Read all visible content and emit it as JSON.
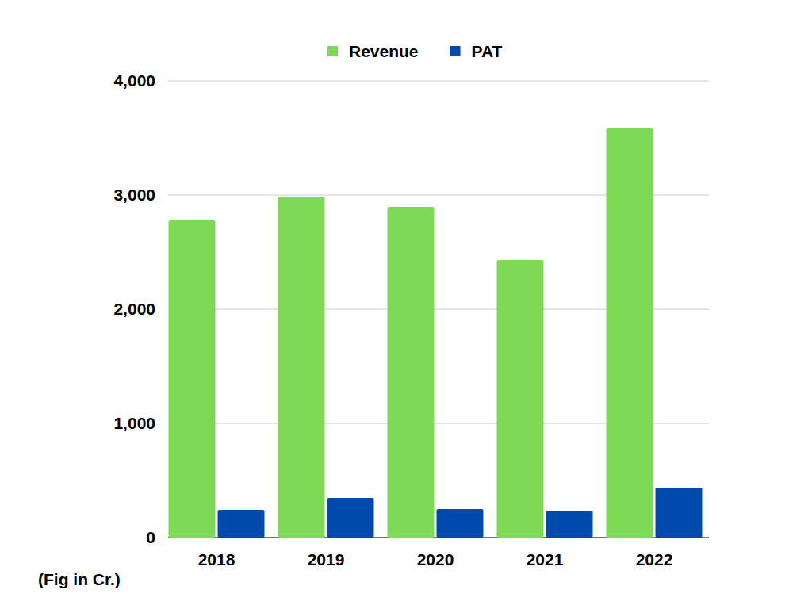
{
  "chart_data": {
    "type": "bar",
    "categories": [
      "2018",
      "2019",
      "2020",
      "2021",
      "2022"
    ],
    "series": [
      {
        "name": "Revenue",
        "color": "#7ed957",
        "values": [
          2778,
          2986,
          2896,
          2431,
          3583
        ]
      },
      {
        "name": "PAT",
        "color": "#004aad",
        "values": [
          243,
          347,
          250,
          236,
          437
        ]
      }
    ],
    "ylim": [
      0,
      4000
    ],
    "yticks": [
      0,
      {
        "value": 1000,
        "label": "1,000"
      },
      {
        "value": 2000,
        "label": "2,000"
      },
      {
        "value": 3000,
        "label": "3,000"
      },
      {
        "value": 4000,
        "label": "4,000"
      }
    ],
    "grid": true,
    "legend": "top",
    "annotations": [
      "(Fig in Cr.)"
    ]
  }
}
